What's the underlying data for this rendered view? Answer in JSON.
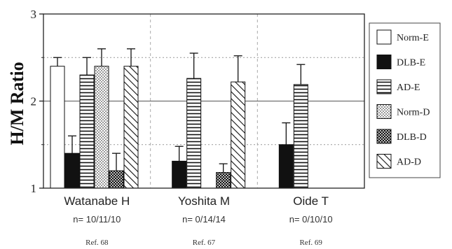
{
  "chart_data": {
    "type": "bar",
    "ylabel": "H/M Ratio",
    "ylim": [
      1,
      3
    ],
    "yticks": [
      "1",
      "2",
      "3"
    ],
    "grid": true,
    "legend_position": "right",
    "categories": [
      "Watanabe H",
      "Yoshita M",
      "Oide T"
    ],
    "n_labels": [
      "n= 10/11/10",
      "n= 0/14/14",
      "n= 0/10/10"
    ],
    "refs": [
      "Ref. 68",
      "Ref. 67",
      "Ref. 69"
    ],
    "series": [
      {
        "name": "Norm-E",
        "pattern": "white",
        "values": [
          2.4,
          null,
          null
        ],
        "errors": [
          0.1,
          null,
          null
        ]
      },
      {
        "name": "DLB-E",
        "pattern": "black",
        "values": [
          1.4,
          1.31,
          1.5
        ],
        "errors": [
          0.2,
          0.17,
          0.25
        ]
      },
      {
        "name": "AD-E",
        "pattern": "hlines",
        "values": [
          2.3,
          2.26,
          2.19
        ],
        "errors": [
          0.2,
          0.29,
          0.23
        ]
      },
      {
        "name": "Norm-D",
        "pattern": "dots",
        "values": [
          2.4,
          null,
          null
        ],
        "errors": [
          0.2,
          null,
          null
        ]
      },
      {
        "name": "DLB-D",
        "pattern": "checker",
        "values": [
          1.2,
          1.18,
          null
        ],
        "errors": [
          0.2,
          0.1,
          null
        ]
      },
      {
        "name": "AD-D",
        "pattern": "diagonal",
        "values": [
          2.4,
          2.22,
          null
        ],
        "errors": [
          0.2,
          0.3,
          null
        ]
      }
    ]
  }
}
